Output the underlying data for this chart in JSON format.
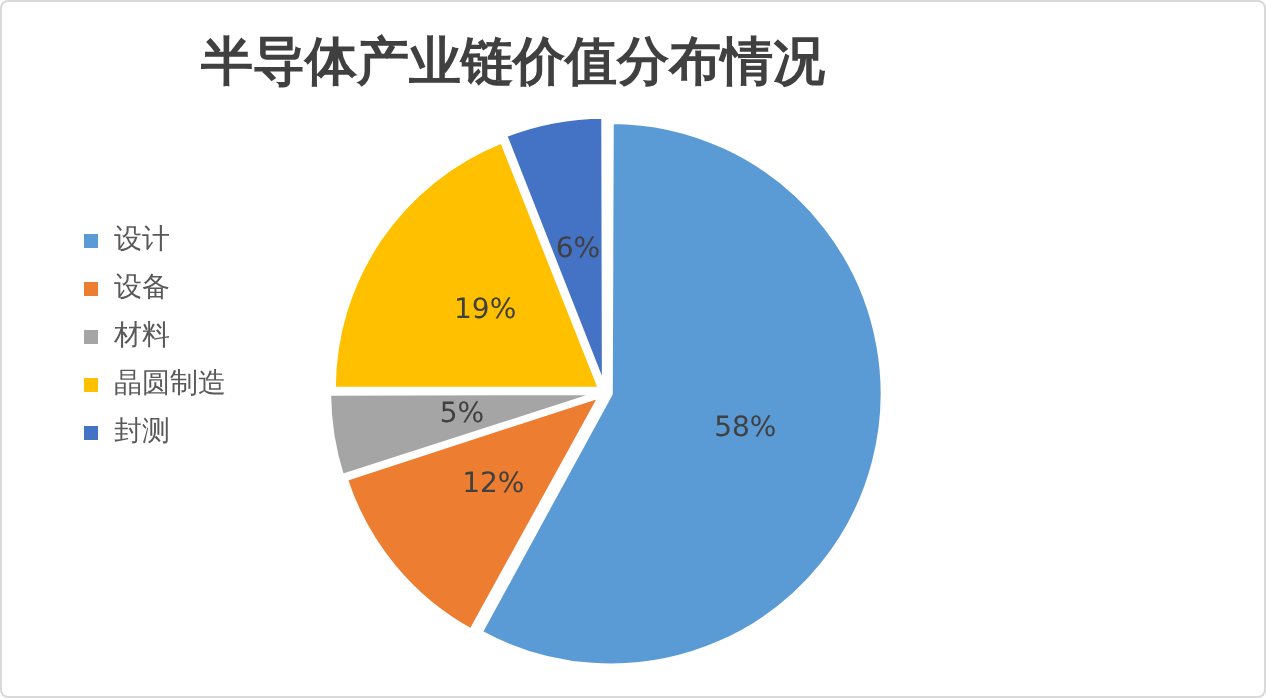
{
  "chart_data": {
    "type": "pie",
    "title": "半导体产业链价值分布情况",
    "categories": [
      "设计",
      "设备",
      "材料",
      "晶圆制造",
      "封测"
    ],
    "values": [
      58,
      12,
      5,
      19,
      6
    ],
    "colors": [
      "#5b9bd5",
      "#ed7d31",
      "#a5a5a5",
      "#ffc000",
      "#4472c4"
    ],
    "value_labels": [
      "58%",
      "12%",
      "5%",
      "19%",
      "6%"
    ],
    "legend": "left"
  }
}
